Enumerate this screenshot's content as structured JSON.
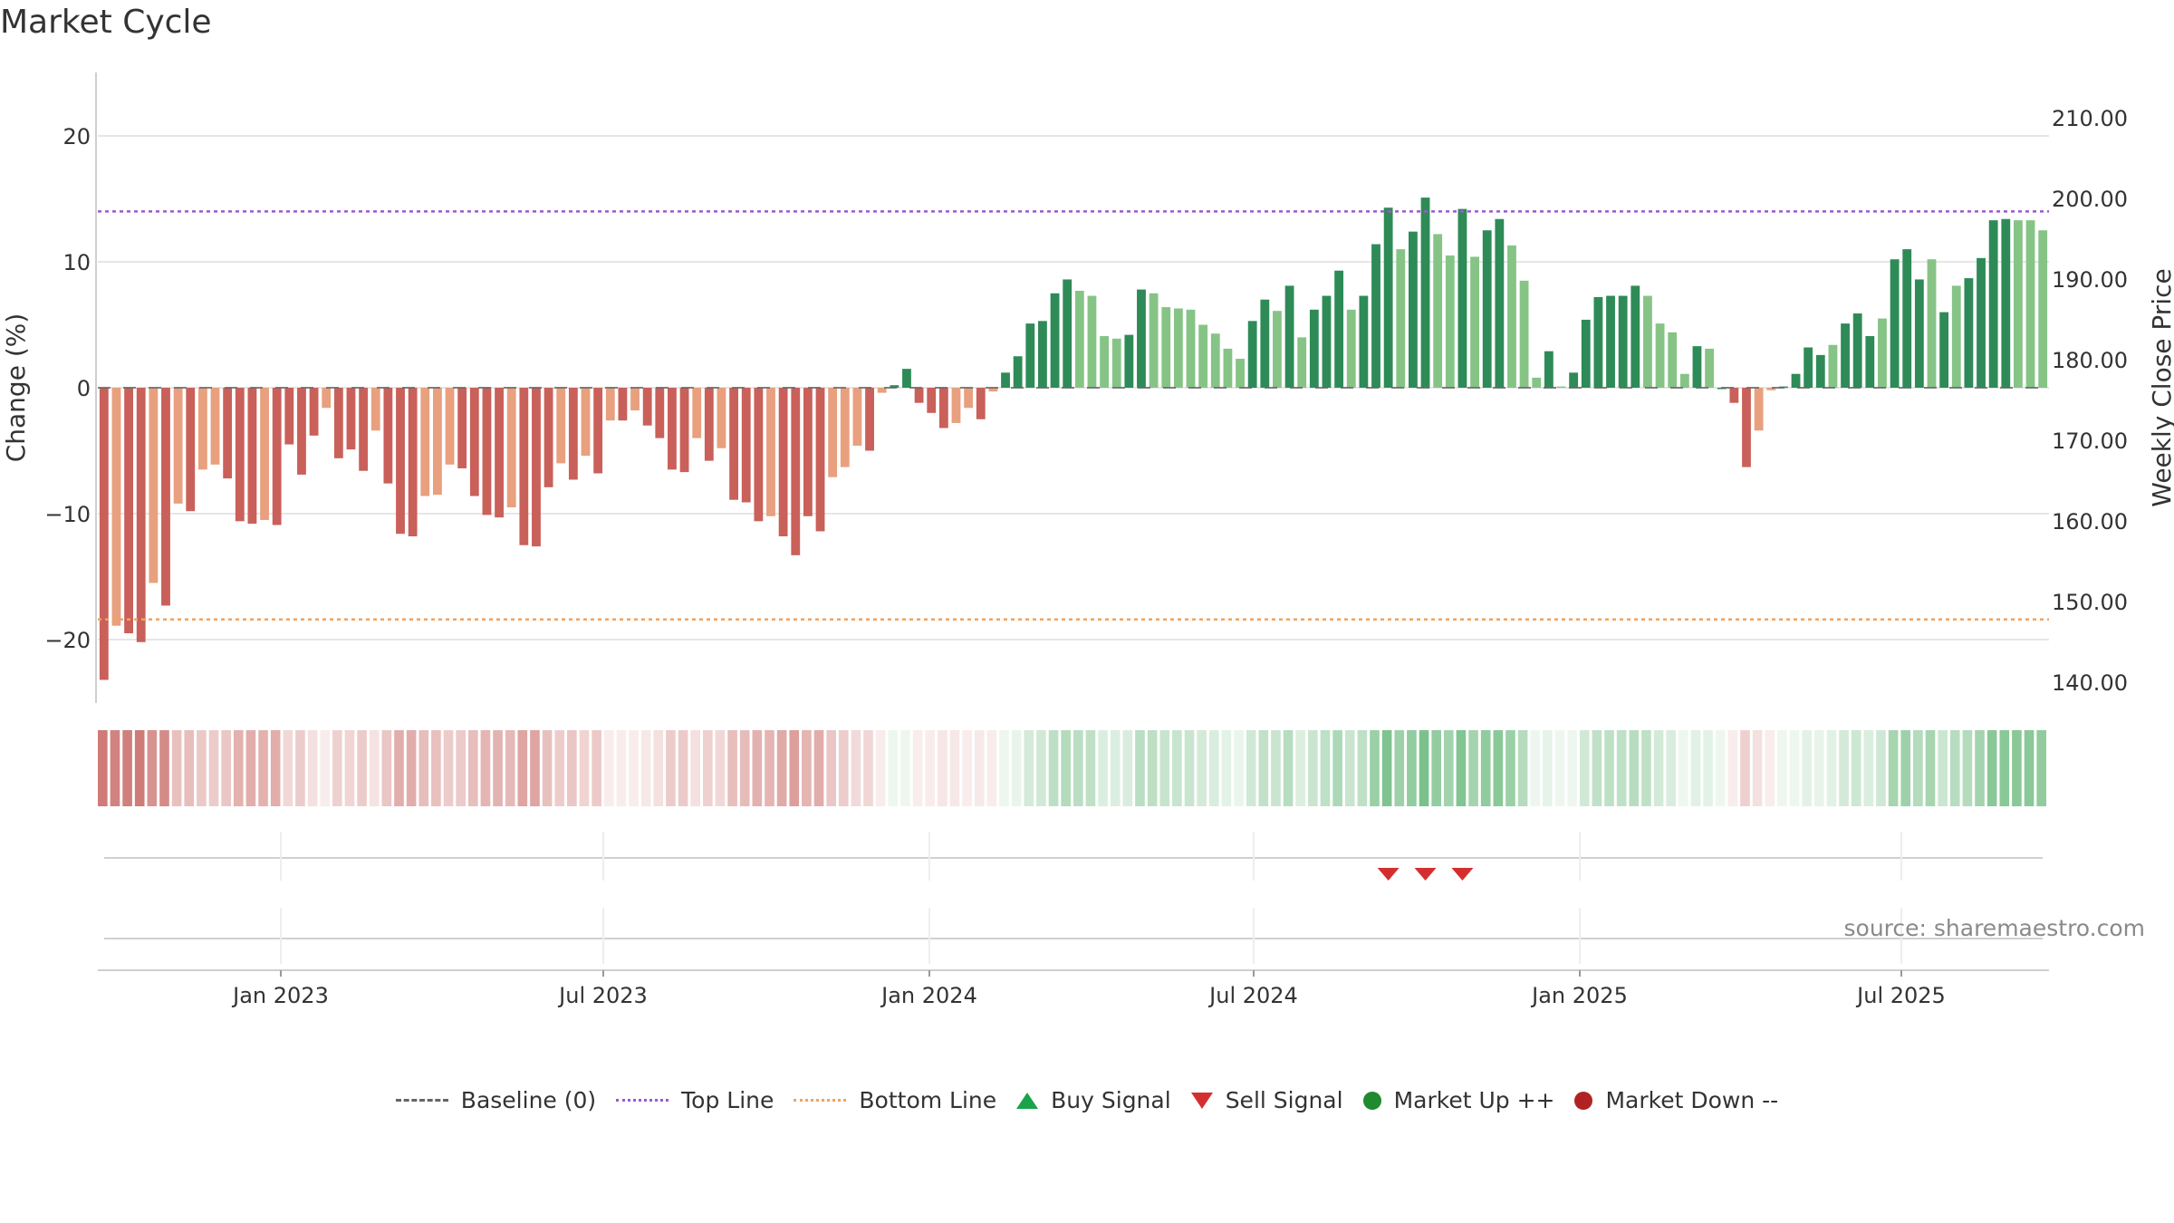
{
  "title": "Market Cycle",
  "source": "source: sharemaestro.com",
  "legend": [
    {
      "label": "Baseline (0)",
      "kind": "dash"
    },
    {
      "label": "Top Line",
      "kind": "top"
    },
    {
      "label": "Bottom Line",
      "kind": "bottom"
    },
    {
      "label": "Buy Signal",
      "kind": "tri-up"
    },
    {
      "label": "Sell Signal",
      "kind": "tri-down"
    },
    {
      "label": "Market Up ++",
      "kind": "dot-up"
    },
    {
      "label": "Market Down --",
      "kind": "dot-down"
    }
  ],
  "colors": {
    "red_dark": "#c9605a",
    "red_light": "#e8a07e",
    "green_dark": "#2e8b57",
    "green_light": "#86c486",
    "top_line": "#9b59d0",
    "bottom_line": "#f0a35e",
    "sell": "#d32f2f"
  },
  "chart_data": {
    "type": "bar",
    "title": "Market Cycle",
    "ylabel": "Change (%)",
    "y2label": "Weekly Close Price",
    "ylim": [
      -25,
      25
    ],
    "yticks": [
      20,
      10,
      0,
      -10,
      -20
    ],
    "ytick_labels": [
      "20",
      "10",
      "0",
      "−10",
      "−20"
    ],
    "y2ticks": [
      "210.00",
      "200.00",
      "190.00",
      "180.00",
      "170.00",
      "160.00",
      "150.00",
      "140.00"
    ],
    "top_line": 14,
    "bottom_line": -18.4,
    "x_ticks": [
      "Jan 2023",
      "Jul 2023",
      "Jan 2024",
      "Jul 2024",
      "Jan 2025",
      "Jul 2025"
    ],
    "values": [
      -23.2,
      -18.9,
      -19.5,
      -20.2,
      -15.5,
      -17.3,
      -9.2,
      -9.8,
      -6.5,
      -6.1,
      -7.2,
      -10.6,
      -10.8,
      -10.5,
      -10.9,
      -4.5,
      -6.9,
      -3.8,
      -1.6,
      -5.6,
      -4.9,
      -6.6,
      -3.4,
      -7.6,
      -11.6,
      -11.8,
      -8.6,
      -8.5,
      -6.1,
      -6.4,
      -8.6,
      -10.1,
      -10.3,
      -9.5,
      -12.5,
      -12.6,
      -7.9,
      -6.0,
      -7.3,
      -5.4,
      -6.8,
      -2.6,
      -2.6,
      -1.8,
      -3.0,
      -4.0,
      -6.5,
      -6.7,
      -4.0,
      -5.8,
      -4.8,
      -8.9,
      -9.1,
      -10.6,
      -10.2,
      -11.8,
      -13.3,
      -10.2,
      -11.4,
      -7.1,
      -6.3,
      -4.6,
      -5.0,
      -0.4,
      0.2,
      1.5,
      -1.2,
      -2.0,
      -3.2,
      -2.8,
      -1.6,
      -2.5,
      -0.3,
      1.2,
      2.5,
      5.1,
      5.3,
      7.5,
      8.6,
      7.7,
      7.3,
      4.1,
      3.9,
      4.2,
      7.8,
      7.5,
      6.4,
      6.3,
      6.2,
      5.0,
      4.3,
      3.1,
      2.3,
      5.3,
      7.0,
      6.1,
      8.1,
      4.0,
      6.2,
      7.3,
      9.3,
      6.2,
      7.3,
      11.4,
      14.3,
      11.0,
      12.4,
      15.1,
      12.2,
      10.5,
      14.2,
      10.4,
      12.5,
      13.4,
      11.3,
      8.5,
      0.8,
      2.9,
      0.1,
      1.2,
      5.4,
      7.2,
      7.3,
      7.3,
      8.1,
      7.3,
      5.1,
      4.4,
      1.1,
      3.3,
      3.1,
      0.0,
      -1.2,
      -6.3,
      -3.4,
      -0.2,
      0.1,
      1.1,
      3.2,
      2.6,
      3.4,
      5.1,
      5.9,
      4.1,
      5.5,
      10.2,
      11.0,
      8.6,
      10.2,
      6.0,
      8.1,
      8.7,
      10.3,
      13.3,
      13.4,
      13.3,
      13.3,
      12.5
    ],
    "light": [
      0,
      1,
      0,
      0,
      1,
      0,
      1,
      0,
      1,
      1,
      0,
      0,
      0,
      1,
      0,
      0,
      0,
      0,
      1,
      0,
      0,
      0,
      1,
      0,
      0,
      0,
      1,
      1,
      1,
      0,
      0,
      0,
      0,
      1,
      0,
      0,
      0,
      1,
      0,
      1,
      0,
      1,
      0,
      1,
      0,
      0,
      0,
      0,
      1,
      0,
      1,
      0,
      0,
      0,
      1,
      0,
      0,
      0,
      0,
      1,
      1,
      1,
      0,
      1,
      0,
      0,
      0,
      0,
      0,
      1,
      1,
      0,
      1,
      0,
      0,
      0,
      0,
      0,
      0,
      1,
      1,
      1,
      1,
      0,
      0,
      1,
      1,
      1,
      1,
      1,
      1,
      1,
      1,
      0,
      0,
      1,
      0,
      1,
      0,
      0,
      0,
      1,
      0,
      0,
      0,
      1,
      0,
      0,
      1,
      1,
      0,
      1,
      0,
      0,
      1,
      1,
      1,
      0,
      1,
      0,
      0,
      0,
      0,
      0,
      0,
      1,
      1,
      1,
      1,
      0,
      1,
      0,
      0,
      0,
      1,
      1,
      0,
      0,
      0,
      0,
      1,
      0,
      0,
      0,
      1,
      0,
      0,
      0,
      1,
      0,
      1,
      0,
      0,
      0,
      0,
      1,
      1,
      1,
      0
    ],
    "heat": [
      0.85,
      0.8,
      0.82,
      0.85,
      0.7,
      0.75,
      0.4,
      0.42,
      0.35,
      0.33,
      0.36,
      0.5,
      0.52,
      0.5,
      0.52,
      0.25,
      0.33,
      0.2,
      0.12,
      0.3,
      0.27,
      0.33,
      0.18,
      0.37,
      0.52,
      0.53,
      0.42,
      0.41,
      0.33,
      0.34,
      0.42,
      0.48,
      0.49,
      0.45,
      0.58,
      0.58,
      0.4,
      0.32,
      0.37,
      0.28,
      0.34,
      0.12,
      0.12,
      0.1,
      0.15,
      0.2,
      0.33,
      0.34,
      0.2,
      0.3,
      0.25,
      0.42,
      0.43,
      0.5,
      0.48,
      0.55,
      0.62,
      0.48,
      0.53,
      0.36,
      0.32,
      0.24,
      0.26,
      0.05,
      0.05,
      0.1,
      0.08,
      0.12,
      0.16,
      0.15,
      0.1,
      0.14,
      0.04,
      0.1,
      0.15,
      0.3,
      0.32,
      0.45,
      0.52,
      0.47,
      0.44,
      0.25,
      0.24,
      0.26,
      0.47,
      0.45,
      0.38,
      0.38,
      0.37,
      0.3,
      0.26,
      0.19,
      0.14,
      0.32,
      0.42,
      0.37,
      0.49,
      0.24,
      0.37,
      0.44,
      0.56,
      0.37,
      0.44,
      0.68,
      0.86,
      0.66,
      0.74,
      0.9,
      0.73,
      0.63,
      0.85,
      0.62,
      0.75,
      0.8,
      0.68,
      0.51,
      0.05,
      0.17,
      0.02,
      0.07,
      0.32,
      0.43,
      0.44,
      0.44,
      0.49,
      0.44,
      0.31,
      0.26,
      0.07,
      0.2,
      0.19,
      0.02,
      0.08,
      0.3,
      0.2,
      0.02,
      0.02,
      0.07,
      0.19,
      0.16,
      0.2,
      0.31,
      0.35,
      0.25,
      0.33,
      0.61,
      0.66,
      0.52,
      0.61,
      0.36,
      0.49,
      0.52,
      0.62,
      0.8,
      0.8,
      0.8,
      0.8,
      0.75
    ],
    "sell_signals": [
      104,
      107,
      110
    ]
  }
}
